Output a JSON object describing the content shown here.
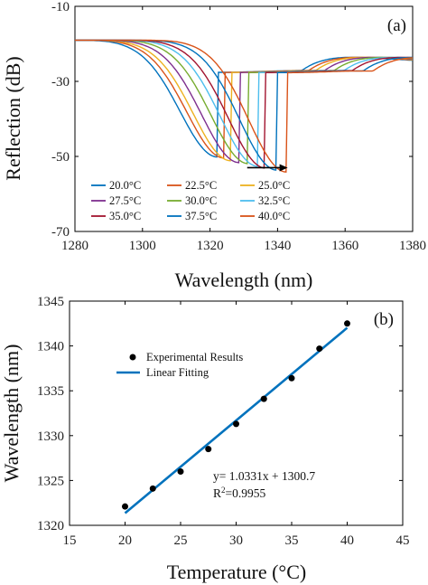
{
  "chart_data": [
    {
      "type": "line",
      "panel_label": "(a)",
      "xlabel": "Wavelength (nm)",
      "ylabel": "Reflection (dB)",
      "xlim": [
        1280,
        1380
      ],
      "ylim": [
        -70,
        -10
      ],
      "xticks": [
        1280,
        1300,
        1320,
        1340,
        1360,
        1380
      ],
      "yticks": [
        -70,
        -50,
        -30,
        -10
      ],
      "grid": false,
      "legend_position": "bottom-center",
      "shift_arrow": {
        "from": 1331,
        "to": 1343,
        "y": -53
      },
      "series": [
        {
          "name": "20.0°C",
          "color": "#0072BD",
          "dip_x": 1322.1,
          "dip_y": -48.5
        },
        {
          "name": "22.5°C",
          "color": "#D95319",
          "dip_x": 1324.1,
          "dip_y": -48.8
        },
        {
          "name": "25.0°C",
          "color": "#EDB120",
          "dip_x": 1326.0,
          "dip_y": -49.5
        },
        {
          "name": "27.5°C",
          "color": "#7E2F8E",
          "dip_x": 1328.5,
          "dip_y": -50.0
        },
        {
          "name": "30.0°C",
          "color": "#77AC30",
          "dip_x": 1331.3,
          "dip_y": -50.3
        },
        {
          "name": "32.5°C",
          "color": "#4DBEEE",
          "dip_x": 1334.1,
          "dip_y": -51.0
        },
        {
          "name": "35.0°C",
          "color": "#A2142F",
          "dip_x": 1336.4,
          "dip_y": -51.5
        },
        {
          "name": "37.5°C",
          "color": "#0072BD",
          "dip_x": 1339.7,
          "dip_y": -52.0
        },
        {
          "name": "40.0°C",
          "color": "#D95319",
          "dip_x": 1342.5,
          "dip_y": -52.5
        }
      ]
    },
    {
      "type": "scatter",
      "panel_label": "(b)",
      "xlabel": "Temperature (°C)",
      "ylabel": "Wavelength (nm)",
      "xlim": [
        15,
        45
      ],
      "ylim": [
        1320,
        1345
      ],
      "xticks": [
        15,
        20,
        25,
        30,
        35,
        40,
        45
      ],
      "yticks": [
        1320,
        1325,
        1330,
        1335,
        1340,
        1345
      ],
      "grid": false,
      "legend_position": "top-left",
      "series": [
        {
          "name": "Experimental Results",
          "color": "#000000",
          "x": [
            20,
            22.5,
            25,
            27.5,
            30,
            32.5,
            35,
            37.5,
            40
          ],
          "y": [
            1322.1,
            1324.1,
            1326.0,
            1328.5,
            1331.3,
            1334.1,
            1336.4,
            1339.7,
            1342.5
          ]
        },
        {
          "name": "Linear Fitting",
          "color": "#0072BD",
          "x": [
            20,
            40
          ],
          "y": [
            1321.36,
            1342.02
          ]
        }
      ],
      "annotations": {
        "equation": "y= 1.0331x + 1300.7",
        "r2_prefix": "R",
        "r2_sup": "2",
        "r2_value": "=0.9955"
      }
    }
  ]
}
